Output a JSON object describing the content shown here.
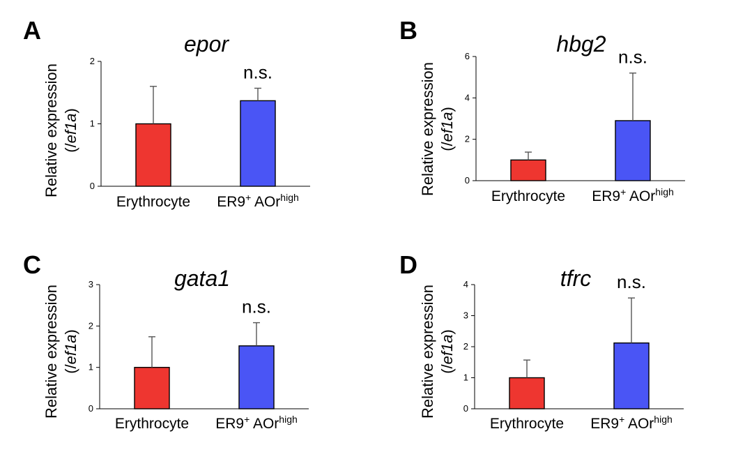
{
  "colors": {
    "erythrocyte": "#ee3630",
    "er9_aor_high": "#4a55f5"
  },
  "chart_data": [
    {
      "type": "bar",
      "panel": "A",
      "title": "epor",
      "ylabel_main": "Relative expression",
      "ylabel_open": "(/",
      "ylabel_gene": "ef1a",
      "ylabel_close": ")",
      "categories": [
        "Erythrocyte",
        "ER9+ AOrhigh"
      ],
      "category_parts": [
        {
          "text": "Erythrocyte",
          "sup1": "",
          "mid": "",
          "sup2": ""
        },
        {
          "text": "ER9",
          "sup1": "+",
          "mid": " AOr",
          "sup2": "high"
        }
      ],
      "values": [
        1.0,
        1.37
      ],
      "errors": [
        0.6,
        0.2
      ],
      "yticks": [
        "0",
        "1",
        "2"
      ],
      "ylim": [
        0,
        2
      ],
      "annotations": [
        "",
        "n.s."
      ]
    },
    {
      "type": "bar",
      "panel": "B",
      "title": "hbg2",
      "ylabel_main": "Relative expression",
      "ylabel_open": "(/",
      "ylabel_gene": "ef1a",
      "ylabel_close": ")",
      "categories": [
        "Erythrocyte",
        "ER9+ AOrhigh"
      ],
      "category_parts": [
        {
          "text": "Erythrocyte",
          "sup1": "",
          "mid": "",
          "sup2": ""
        },
        {
          "text": "ER9",
          "sup1": "+",
          "mid": " AOr",
          "sup2": "high"
        }
      ],
      "values": [
        1.0,
        2.9
      ],
      "errors": [
        0.38,
        2.3
      ],
      "yticks": [
        "0",
        "2",
        "4",
        "6"
      ],
      "ylim": [
        0,
        6
      ],
      "annotations": [
        "",
        "n.s."
      ]
    },
    {
      "type": "bar",
      "panel": "C",
      "title": "gata1",
      "ylabel_main": "Relative expression",
      "ylabel_open": "(/",
      "ylabel_gene": "ef1a",
      "ylabel_close": ")",
      "categories": [
        "Erythrocyte",
        "ER9+ AOrhigh"
      ],
      "category_parts": [
        {
          "text": "Erythrocyte",
          "sup1": "",
          "mid": "",
          "sup2": ""
        },
        {
          "text": "ER9",
          "sup1": "+",
          "mid": " AOr",
          "sup2": "high"
        }
      ],
      "values": [
        1.0,
        1.52
      ],
      "errors": [
        0.74,
        0.56
      ],
      "yticks": [
        "0",
        "1",
        "2",
        "3"
      ],
      "ylim": [
        0,
        3
      ],
      "annotations": [
        "",
        "n.s."
      ]
    },
    {
      "type": "bar",
      "panel": "D",
      "title": "tfrc",
      "ylabel_main": "Relative expression",
      "ylabel_open": "(/",
      "ylabel_gene": "ef1a",
      "ylabel_close": ")",
      "categories": [
        "Erythrocyte",
        "ER9+ AOrhigh"
      ],
      "category_parts": [
        {
          "text": "Erythrocyte",
          "sup1": "",
          "mid": "",
          "sup2": ""
        },
        {
          "text": "ER9",
          "sup1": "+",
          "mid": " AOr",
          "sup2": "high"
        }
      ],
      "values": [
        1.0,
        2.12
      ],
      "errors": [
        0.57,
        1.45
      ],
      "yticks": [
        "0",
        "1",
        "2",
        "3",
        "4"
      ],
      "ylim": [
        0,
        4
      ],
      "annotations": [
        "",
        "n.s."
      ]
    }
  ]
}
